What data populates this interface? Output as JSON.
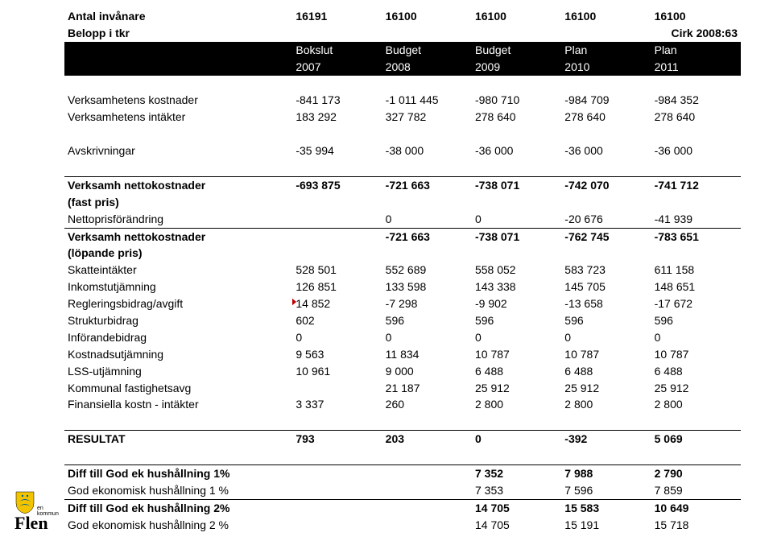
{
  "table": {
    "col_widths": [
      "280px",
      "110px",
      "110px",
      "110px",
      "110px",
      "110px"
    ],
    "top": {
      "invanare": {
        "label": "Antal invånare",
        "v": [
          "16191",
          "16100",
          "16100",
          "16100",
          "16100"
        ]
      },
      "belopp": {
        "label": "Belopp i tkr",
        "right": "Cirk 2008:63"
      }
    },
    "header": {
      "r1": [
        "",
        "Bokslut",
        "Budget",
        "Budget",
        "Plan",
        "Plan"
      ],
      "r2": [
        "",
        "2007",
        "2008",
        "2009",
        "2010",
        "2011"
      ]
    },
    "blocks": [
      {
        "spacer": true
      },
      {
        "label": "Verksamhetens kostnader",
        "v": [
          "-841 173",
          "-1 011 445",
          "-980 710",
          "-984 709",
          "-984 352"
        ]
      },
      {
        "label": "Verksamhetens intäkter",
        "v": [
          "183 292",
          "327 782",
          "278 640",
          "278 640",
          "278 640"
        ]
      },
      {
        "spacer": true
      },
      {
        "label": "Avskrivningar",
        "v": [
          "-35 994",
          "-38 000",
          "-36 000",
          "-36 000",
          "-36 000"
        ]
      },
      {
        "spacer": true
      },
      {
        "label": "Verksamh nettokostnader",
        "bold": true,
        "bt": true,
        "v": [
          "-693 875",
          "-721 663",
          "-738 071",
          "-742 070",
          "-741 712"
        ]
      },
      {
        "label": "(fast pris)",
        "bold": true,
        "v": [
          "",
          "",
          "",
          "",
          ""
        ]
      },
      {
        "label": "Nettoprisförändring",
        "v": [
          "",
          "0",
          "0",
          "-20 676",
          "-41 939"
        ]
      },
      {
        "label": "Verksamh nettokostnader",
        "bold": true,
        "bt": true,
        "v": [
          "",
          "-721 663",
          "-738 071",
          "-762 745",
          "-783 651"
        ]
      },
      {
        "label": "(löpande pris)",
        "bold": true,
        "v": [
          "",
          "",
          "",
          "",
          ""
        ]
      },
      {
        "label": "Skatteintäkter",
        "v": [
          "528 501",
          "552 689",
          "558 052",
          "583 723",
          "611 158"
        ]
      },
      {
        "label": "Inkomstutjämning",
        "v": [
          "126 851",
          "133 598",
          "143 338",
          "145 705",
          "148 651"
        ]
      },
      {
        "label": "Regleringsbidrag/avgift",
        "marker": true,
        "v": [
          "14 852",
          "-7 298",
          "-9 902",
          "-13 658",
          "-17 672"
        ]
      },
      {
        "label": "Strukturbidrag",
        "v": [
          "602",
          "596",
          "596",
          "596",
          "596"
        ]
      },
      {
        "label": "Införandebidrag",
        "v": [
          "0",
          "0",
          "0",
          "0",
          "0"
        ]
      },
      {
        "label": "Kostnadsutjämning",
        "v": [
          "9 563",
          "11 834",
          "10 787",
          "10 787",
          "10 787"
        ]
      },
      {
        "label": "LSS-utjämning",
        "v": [
          "10 961",
          "9 000",
          "6 488",
          "6 488",
          "6 488"
        ]
      },
      {
        "label": "Kommunal fastighetsavg",
        "v": [
          "",
          "21 187",
          "25 912",
          "25 912",
          "25 912"
        ]
      },
      {
        "label": "Finansiella kostn - intäkter",
        "v": [
          "3 337",
          "260",
          "2 800",
          "2 800",
          "2 800"
        ]
      },
      {
        "spacer": true
      },
      {
        "label": "RESULTAT",
        "bold": true,
        "bt": true,
        "v": [
          "793",
          "203",
          "0",
          "-392",
          "5 069"
        ]
      },
      {
        "spacer": true
      },
      {
        "label": "Diff till God ek hushållning 1%",
        "bold": true,
        "bt": true,
        "v": [
          "",
          "",
          "7 352",
          "7 988",
          "2 790"
        ]
      },
      {
        "label": "God ekonomisk hushållning 1 %",
        "v": [
          "",
          "",
          "7 353",
          "7 596",
          "7 859"
        ]
      },
      {
        "label": "Diff till God ek hushållning 2%",
        "bold": true,
        "bt": true,
        "v": [
          "",
          "",
          "14 705",
          "15 583",
          "10 649"
        ]
      },
      {
        "label": "God ekonomisk hushållning 2 %",
        "v": [
          "",
          "",
          "14 705",
          "15 191",
          "15 718"
        ]
      }
    ]
  },
  "logo": {
    "text": "Flen",
    "sub": "en kommun",
    "shield_fill": "#f2c400",
    "shape_fill": "#005a9c"
  }
}
